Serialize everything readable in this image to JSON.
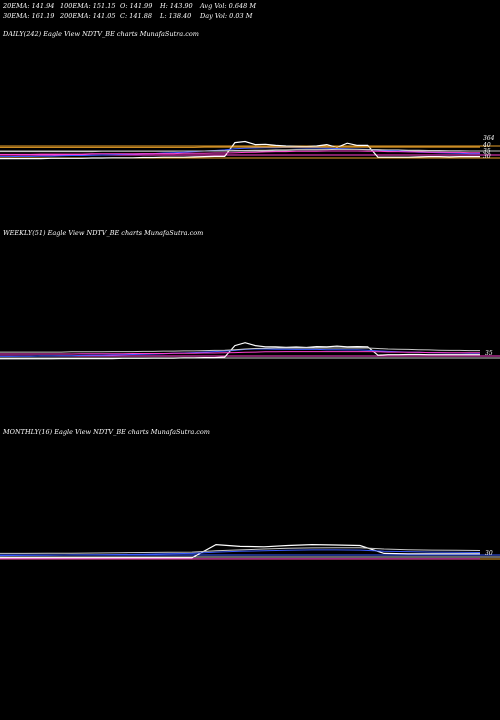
{
  "header": {
    "ema20": "20EMA: 141.94",
    "ema100": "100EMA: 151.15",
    "open": "O: 141.99",
    "high": "H: 143.90",
    "avg_vol": "Avg Vol: 0.648 M",
    "ema30": "30EMA: 161.19",
    "ema200": "200EMA: 141.05",
    "close": "C: 141.88",
    "low": "L: 138.40",
    "day_vol": "Day Vol: 0.03 M"
  },
  "panels": {
    "daily": {
      "title": "DAILY(242) Eagle   View  NDTV_BE charts MunafaSutra.com"
    },
    "weekly": {
      "title": "WEEKLY(51) Eagle   View  NDTV_BE charts MunafaSutra.com",
      "price_label": "35"
    },
    "monthly": {
      "title": "MONTHLY(16) Eagle   View  NDTV_BE charts MunafaSutra.com",
      "price_label": "30"
    }
  },
  "chart_data": [
    {
      "type": "line",
      "panel": "daily",
      "right_labels": [
        "364",
        "40",
        "35",
        "30"
      ],
      "series": [
        {
          "color": "#ffffff",
          "values": [
            0.05,
            0.05,
            0.05,
            0.05,
            0.05,
            0.06,
            0.06,
            0.06,
            0.06,
            0.07,
            0.07,
            0.08,
            0.08,
            0.08,
            0.09,
            0.09,
            0.1,
            0.1,
            0.1,
            0.11,
            0.12,
            0.13,
            0.13,
            0.62,
            0.66,
            0.55,
            0.56,
            0.52,
            0.5,
            0.49,
            0.48,
            0.5,
            0.55,
            0.45,
            0.6,
            0.52,
            0.52,
            0.1,
            0.1,
            0.1,
            0.1,
            0.11,
            0.12,
            0.12,
            0.11,
            0.12,
            0.12,
            0.12
          ]
        },
        {
          "color": "#3a5bff",
          "values": [
            0.12,
            0.12,
            0.13,
            0.13,
            0.14,
            0.14,
            0.15,
            0.16,
            0.16,
            0.17,
            0.18,
            0.19,
            0.2,
            0.21,
            0.22,
            0.23,
            0.25,
            0.26,
            0.28,
            0.3,
            0.32,
            0.34,
            0.36,
            0.4,
            0.42,
            0.43,
            0.44,
            0.44,
            0.45,
            0.44,
            0.43,
            0.43,
            0.42,
            0.41,
            0.4,
            0.39,
            0.38,
            0.36,
            0.34,
            0.32,
            0.3,
            0.28,
            0.27,
            0.26,
            0.25,
            0.24,
            0.23,
            0.23
          ]
        },
        {
          "color": "#ff3fd0",
          "values": [
            0.2,
            0.2,
            0.2,
            0.2,
            0.21,
            0.21,
            0.21,
            0.21,
            0.21,
            0.22,
            0.22,
            0.22,
            0.22,
            0.22,
            0.23,
            0.23,
            0.23,
            0.23,
            0.24,
            0.24,
            0.24,
            0.25,
            0.25,
            0.26,
            0.27,
            0.28,
            0.29,
            0.3,
            0.3,
            0.31,
            0.31,
            0.31,
            0.32,
            0.32,
            0.32,
            0.32,
            0.31,
            0.31,
            0.3,
            0.3,
            0.29,
            0.29,
            0.28,
            0.28,
            0.27,
            0.27,
            0.26,
            0.26
          ]
        },
        {
          "color": "#c8c8c8",
          "values": [
            0.3,
            0.3,
            0.3,
            0.3,
            0.3,
            0.3,
            0.3,
            0.3,
            0.3,
            0.3,
            0.31,
            0.31,
            0.31,
            0.31,
            0.31,
            0.31,
            0.31,
            0.31,
            0.32,
            0.32,
            0.32,
            0.33,
            0.33,
            0.34,
            0.34,
            0.35,
            0.35,
            0.36,
            0.36,
            0.37,
            0.37,
            0.37,
            0.37,
            0.38,
            0.38,
            0.38,
            0.37,
            0.37,
            0.36,
            0.36,
            0.35,
            0.35,
            0.34,
            0.34,
            0.33,
            0.33,
            0.32,
            0.32
          ]
        },
        {
          "color": "#e8a02a",
          "values": [
            0.45,
            0.45,
            0.45,
            0.45,
            0.45,
            0.45,
            0.45,
            0.45,
            0.45,
            0.45,
            0.45,
            0.45,
            0.45,
            0.45,
            0.45,
            0.45,
            0.45,
            0.45,
            0.45,
            0.45,
            0.46,
            0.46,
            0.46,
            0.46,
            0.46,
            0.46,
            0.46,
            0.46,
            0.46,
            0.46,
            0.46,
            0.46,
            0.46,
            0.46,
            0.46,
            0.46,
            0.46,
            0.46,
            0.46,
            0.46,
            0.46,
            0.46,
            0.46,
            0.46,
            0.46,
            0.46,
            0.46,
            0.46
          ]
        }
      ]
    },
    {
      "type": "line",
      "panel": "weekly",
      "right_labels": [
        "35"
      ],
      "series": [
        {
          "color": "#ffffff",
          "values": [
            0.05,
            0.05,
            0.05,
            0.05,
            0.05,
            0.05,
            0.06,
            0.06,
            0.06,
            0.06,
            0.06,
            0.06,
            0.07,
            0.07,
            0.07,
            0.08,
            0.08,
            0.08,
            0.09,
            0.09,
            0.1,
            0.1,
            0.12,
            0.6,
            0.72,
            0.6,
            0.55,
            0.55,
            0.53,
            0.54,
            0.52,
            0.56,
            0.55,
            0.58,
            0.55,
            0.56,
            0.55,
            0.2,
            0.22,
            0.22,
            0.23,
            0.23,
            0.22,
            0.22,
            0.22,
            0.22,
            0.22,
            0.22
          ]
        },
        {
          "color": "#3a5bff",
          "values": [
            0.15,
            0.15,
            0.16,
            0.16,
            0.17,
            0.17,
            0.18,
            0.18,
            0.19,
            0.2,
            0.2,
            0.21,
            0.22,
            0.23,
            0.24,
            0.25,
            0.26,
            0.28,
            0.29,
            0.31,
            0.33,
            0.35,
            0.37,
            0.4,
            0.44,
            0.46,
            0.46,
            0.45,
            0.45,
            0.44,
            0.44,
            0.44,
            0.43,
            0.43,
            0.42,
            0.42,
            0.41,
            0.38,
            0.36,
            0.34,
            0.33,
            0.32,
            0.31,
            0.3,
            0.29,
            0.29,
            0.28,
            0.28
          ]
        },
        {
          "color": "#ff3fd0",
          "values": [
            0.25,
            0.25,
            0.25,
            0.25,
            0.25,
            0.25,
            0.25,
            0.25,
            0.26,
            0.26,
            0.26,
            0.26,
            0.26,
            0.27,
            0.27,
            0.27,
            0.27,
            0.28,
            0.28,
            0.28,
            0.29,
            0.29,
            0.3,
            0.31,
            0.32,
            0.33,
            0.34,
            0.34,
            0.35,
            0.35,
            0.35,
            0.35,
            0.35,
            0.35,
            0.35,
            0.35,
            0.35,
            0.34,
            0.33,
            0.33,
            0.32,
            0.32,
            0.31,
            0.31,
            0.3,
            0.3,
            0.3,
            0.3
          ]
        },
        {
          "color": "#c8c8c8",
          "values": [
            0.33,
            0.33,
            0.33,
            0.33,
            0.33,
            0.33,
            0.33,
            0.34,
            0.34,
            0.34,
            0.34,
            0.35,
            0.35,
            0.35,
            0.36,
            0.36,
            0.37,
            0.37,
            0.38,
            0.38,
            0.39,
            0.4,
            0.41,
            0.43,
            0.46,
            0.48,
            0.49,
            0.5,
            0.5,
            0.5,
            0.5,
            0.5,
            0.5,
            0.5,
            0.5,
            0.5,
            0.5,
            0.48,
            0.46,
            0.45,
            0.44,
            0.43,
            0.42,
            0.41,
            0.4,
            0.4,
            0.39,
            0.39
          ]
        }
      ]
    },
    {
      "type": "line",
      "panel": "monthly",
      "right_labels": [
        "30"
      ],
      "series": [
        {
          "color": "#ffffff",
          "values": [
            0.1,
            0.1,
            0.1,
            0.1,
            0.1,
            0.1,
            0.1,
            0.1,
            0.1,
            0.7,
            0.62,
            0.6,
            0.66,
            0.7,
            0.68,
            0.66,
            0.3,
            0.28,
            0.28,
            0.28,
            0.28
          ]
        },
        {
          "color": "#3a5bff",
          "values": [
            0.2,
            0.21,
            0.22,
            0.23,
            0.24,
            0.25,
            0.26,
            0.28,
            0.3,
            0.36,
            0.4,
            0.42,
            0.44,
            0.46,
            0.46,
            0.45,
            0.4,
            0.38,
            0.36,
            0.35,
            0.34
          ]
        },
        {
          "color": "#c8c8c8",
          "values": [
            0.3,
            0.3,
            0.31,
            0.31,
            0.32,
            0.33,
            0.34,
            0.35,
            0.36,
            0.42,
            0.46,
            0.5,
            0.53,
            0.55,
            0.56,
            0.56,
            0.5,
            0.47,
            0.45,
            0.44,
            0.43
          ]
        },
        {
          "color": "#ff3fd0",
          "values": [
            0.05,
            0.05,
            0.05,
            0.05,
            0.05,
            0.05,
            0.05,
            0.05,
            0.05,
            0.05,
            0.05,
            0.05,
            0.05,
            0.05,
            0.05,
            0.05,
            0.05,
            0.05,
            0.05,
            0.05,
            0.05
          ]
        }
      ]
    }
  ]
}
